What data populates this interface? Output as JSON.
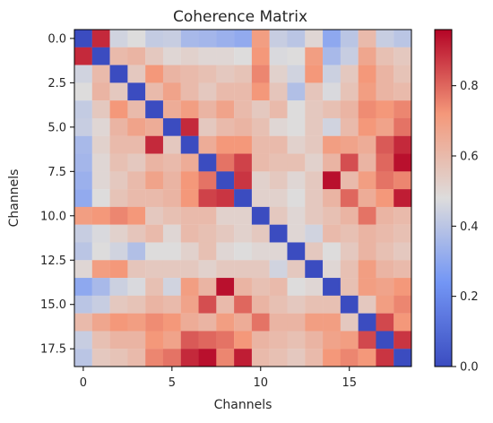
{
  "chart_data": {
    "type": "heatmap",
    "title": "Coherence Matrix",
    "xlabel": "Channels",
    "ylabel": "Channels",
    "x_tick_labels": [
      "0",
      "5",
      "10",
      "15"
    ],
    "x_tick_values": [
      0,
      5,
      10,
      15
    ],
    "y_tick_labels": [
      "0.0",
      "2.5",
      "5.0",
      "7.5",
      "10.0",
      "12.5",
      "15.0",
      "17.5"
    ],
    "y_tick_values": [
      0.0,
      2.5,
      5.0,
      7.5,
      10.0,
      12.5,
      15.0,
      17.5
    ],
    "xlim": [
      -0.5,
      18.5
    ],
    "ylim": [
      18.5,
      -0.5
    ],
    "colormap": "coolwarm",
    "colorbar": {
      "min": 0.0,
      "max": 0.96,
      "tick_labels": [
        "0.0",
        "0.2",
        "0.4",
        "0.6",
        "0.8"
      ],
      "tick_values": [
        0.0,
        0.2,
        0.4,
        0.6,
        0.8
      ]
    },
    "grid": false,
    "matrix": [
      [
        0.0,
        0.9,
        0.45,
        0.48,
        0.42,
        0.43,
        0.36,
        0.35,
        0.33,
        0.31,
        0.7,
        0.43,
        0.4,
        0.5,
        0.3,
        0.4,
        0.6,
        0.43,
        0.4
      ],
      [
        0.9,
        0.0,
        0.6,
        0.62,
        0.55,
        0.5,
        0.52,
        0.5,
        0.5,
        0.48,
        0.72,
        0.47,
        0.48,
        0.7,
        0.36,
        0.43,
        0.67,
        0.58,
        0.55
      ],
      [
        0.45,
        0.6,
        0.0,
        0.55,
        0.72,
        0.62,
        0.6,
        0.58,
        0.55,
        0.57,
        0.75,
        0.52,
        0.45,
        0.72,
        0.44,
        0.55,
        0.72,
        0.62,
        0.57
      ],
      [
        0.48,
        0.62,
        0.55,
        0.0,
        0.6,
        0.68,
        0.6,
        0.55,
        0.6,
        0.6,
        0.72,
        0.56,
        0.38,
        0.56,
        0.47,
        0.57,
        0.7,
        0.62,
        0.6
      ],
      [
        0.42,
        0.55,
        0.72,
        0.6,
        0.0,
        0.65,
        0.7,
        0.62,
        0.68,
        0.6,
        0.55,
        0.6,
        0.48,
        0.55,
        0.58,
        0.62,
        0.74,
        0.72,
        0.75
      ],
      [
        0.43,
        0.5,
        0.62,
        0.68,
        0.65,
        0.0,
        0.9,
        0.55,
        0.6,
        0.62,
        0.58,
        0.5,
        0.48,
        0.55,
        0.45,
        0.6,
        0.72,
        0.68,
        0.78
      ],
      [
        0.36,
        0.52,
        0.6,
        0.6,
        0.9,
        0.55,
        0.0,
        0.65,
        0.72,
        0.72,
        0.6,
        0.6,
        0.52,
        0.55,
        0.7,
        0.68,
        0.65,
        0.82,
        0.9
      ],
      [
        0.35,
        0.5,
        0.58,
        0.55,
        0.62,
        0.6,
        0.65,
        0.0,
        0.78,
        0.86,
        0.6,
        0.58,
        0.58,
        0.52,
        0.62,
        0.84,
        0.62,
        0.8,
        0.94
      ],
      [
        0.33,
        0.5,
        0.55,
        0.6,
        0.68,
        0.62,
        0.72,
        0.78,
        0.0,
        0.88,
        0.52,
        0.55,
        0.5,
        0.55,
        0.94,
        0.6,
        0.7,
        0.78,
        0.75
      ],
      [
        0.31,
        0.48,
        0.57,
        0.6,
        0.6,
        0.62,
        0.72,
        0.86,
        0.88,
        0.0,
        0.52,
        0.52,
        0.48,
        0.55,
        0.62,
        0.8,
        0.65,
        0.72,
        0.92
      ],
      [
        0.7,
        0.72,
        0.75,
        0.72,
        0.55,
        0.58,
        0.6,
        0.6,
        0.52,
        0.52,
        0.0,
        0.55,
        0.5,
        0.55,
        0.58,
        0.62,
        0.78,
        0.62,
        0.6
      ],
      [
        0.43,
        0.47,
        0.52,
        0.56,
        0.6,
        0.5,
        0.6,
        0.58,
        0.55,
        0.52,
        0.55,
        0.0,
        0.5,
        0.45,
        0.6,
        0.58,
        0.62,
        0.6,
        0.58
      ],
      [
        0.4,
        0.48,
        0.45,
        0.38,
        0.48,
        0.48,
        0.52,
        0.58,
        0.5,
        0.48,
        0.5,
        0.5,
        0.0,
        0.55,
        0.48,
        0.55,
        0.62,
        0.58,
        0.55
      ],
      [
        0.5,
        0.7,
        0.72,
        0.56,
        0.55,
        0.55,
        0.55,
        0.52,
        0.55,
        0.55,
        0.55,
        0.45,
        0.55,
        0.0,
        0.5,
        0.58,
        0.7,
        0.62,
        0.6
      ],
      [
        0.3,
        0.36,
        0.44,
        0.47,
        0.58,
        0.45,
        0.7,
        0.62,
        0.94,
        0.62,
        0.58,
        0.6,
        0.48,
        0.5,
        0.0,
        0.58,
        0.7,
        0.68,
        0.72
      ],
      [
        0.4,
        0.43,
        0.55,
        0.57,
        0.62,
        0.6,
        0.68,
        0.84,
        0.6,
        0.8,
        0.62,
        0.58,
        0.55,
        0.58,
        0.58,
        0.0,
        0.55,
        0.7,
        0.75
      ],
      [
        0.6,
        0.67,
        0.72,
        0.7,
        0.74,
        0.72,
        0.65,
        0.62,
        0.7,
        0.65,
        0.78,
        0.62,
        0.62,
        0.7,
        0.7,
        0.55,
        0.0,
        0.85,
        0.72
      ],
      [
        0.43,
        0.58,
        0.62,
        0.62,
        0.72,
        0.68,
        0.82,
        0.8,
        0.78,
        0.72,
        0.62,
        0.6,
        0.58,
        0.62,
        0.68,
        0.7,
        0.85,
        0.0,
        0.88
      ],
      [
        0.4,
        0.55,
        0.57,
        0.6,
        0.75,
        0.78,
        0.9,
        0.94,
        0.75,
        0.92,
        0.6,
        0.58,
        0.55,
        0.6,
        0.72,
        0.75,
        0.72,
        0.88,
        0.0
      ]
    ]
  }
}
